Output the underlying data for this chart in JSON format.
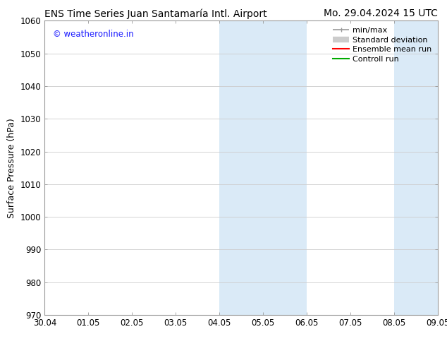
{
  "title_left": "ENS Time Series Juan Santamaría Intl. Airport",
  "title_right": "Mo. 29.04.2024 15 UTC",
  "ylabel": "Surface Pressure (hPa)",
  "ylim": [
    970,
    1060
  ],
  "yticks": [
    970,
    980,
    990,
    1000,
    1010,
    1020,
    1030,
    1040,
    1050,
    1060
  ],
  "xtick_labels": [
    "30.04",
    "01.05",
    "02.05",
    "03.05",
    "04.05",
    "05.05",
    "06.05",
    "07.05",
    "08.05",
    "09.05"
  ],
  "shaded_bands": [
    {
      "xmin": 4.0,
      "xmax": 4.5
    },
    {
      "xmin": 4.5,
      "xmax": 6.0
    },
    {
      "xmin": 8.0,
      "xmax": 9.0
    }
  ],
  "shaded_color": "#daeaf7",
  "watermark_text": "© weatheronline.in",
  "watermark_color": "#1a1aff",
  "legend_entries": [
    {
      "label": "min/max",
      "color": "#999999",
      "lw": 1.2
    },
    {
      "label": "Standard deviation",
      "color": "#cccccc",
      "lw": 5
    },
    {
      "label": "Ensemble mean run",
      "color": "#ff0000",
      "lw": 1.5
    },
    {
      "label": "Controll run",
      "color": "#00aa00",
      "lw": 1.5
    }
  ],
  "bg_color": "#ffffff",
  "plot_bg_color": "#ffffff",
  "grid_color": "#cccccc",
  "spine_color": "#999999",
  "title_fontsize": 10,
  "tick_fontsize": 8.5,
  "legend_fontsize": 8,
  "ylabel_fontsize": 9
}
